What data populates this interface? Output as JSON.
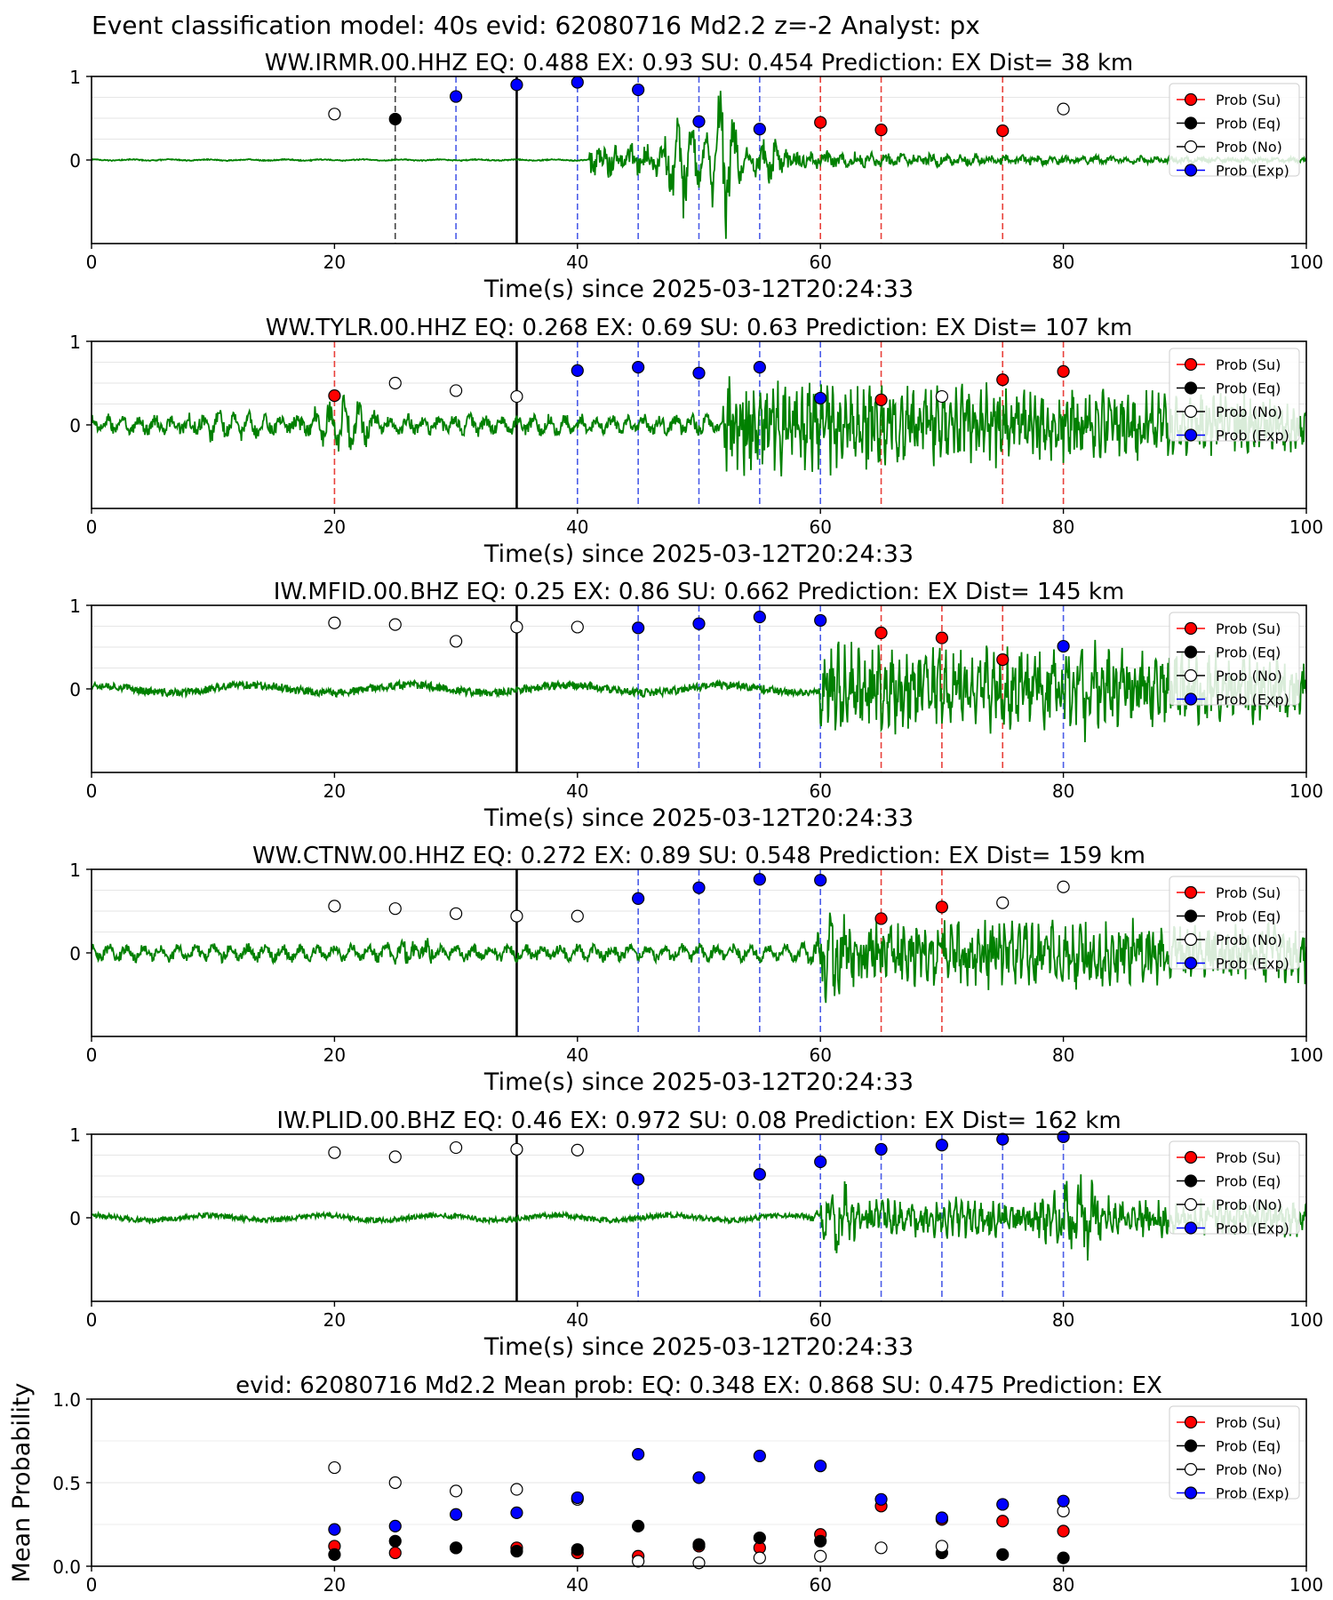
{
  "figure": {
    "title": "Event classification model: 40s evid: 62080716 Md2.2 z=-2 Analyst: px"
  },
  "legend": {
    "entries": [
      {
        "label": "Prob (Su)",
        "color": "#ff0000",
        "filled": true
      },
      {
        "label": "Prob (Eq)",
        "color": "#000000",
        "filled": true
      },
      {
        "label": "Prob (No)",
        "color": "#ffffff",
        "filled": false
      },
      {
        "label": "Prob (Exp)",
        "color": "#0000ff",
        "filled": true
      }
    ]
  },
  "colors": {
    "su": "#ff0000",
    "eq": "#000000",
    "no": "#ffffff",
    "exp": "#0000ff",
    "waveform": "#008000",
    "origin_line": "#000000"
  },
  "chart_data": [
    {
      "type": "line",
      "title": "WW.IRMR.00.HHZ   EQ: 0.488  EX: 0.93  SU: 0.454   Prediction: EX    Dist= 38 km",
      "xlabel": "Time(s) since 2025-03-12T20:24:33",
      "ylabel": "",
      "xlim": [
        0,
        100
      ],
      "ylim": [
        -1,
        1
      ],
      "xticks": [
        "0",
        "20",
        "40",
        "60",
        "80",
        "100"
      ],
      "yticks": [
        "0",
        "1"
      ],
      "origin_time": 35,
      "waveform": {
        "onset": 41,
        "pre_amp": 0.01,
        "post_amp": 0.18,
        "decay": 0.035,
        "freq": 0.9,
        "seed": 11,
        "bursts": [
          {
            "t": 48.5,
            "amp": 0.5,
            "width": 1.5
          },
          {
            "t": 52,
            "amp": 0.8,
            "width": 1.2
          },
          {
            "t": 56,
            "amp": 0.3,
            "width": 1.5
          }
        ]
      },
      "predictions": [
        {
          "t": 20,
          "cls": "no",
          "p": 0.55
        },
        {
          "t": 25,
          "cls": "eq",
          "p": 0.49
        },
        {
          "t": 30,
          "cls": "exp",
          "p": 0.76
        },
        {
          "t": 35,
          "cls": "exp",
          "p": 0.9
        },
        {
          "t": 40,
          "cls": "exp",
          "p": 0.93
        },
        {
          "t": 45,
          "cls": "exp",
          "p": 0.84
        },
        {
          "t": 50,
          "cls": "exp",
          "p": 0.46
        },
        {
          "t": 55,
          "cls": "exp",
          "p": 0.37
        },
        {
          "t": 60,
          "cls": "su",
          "p": 0.45
        },
        {
          "t": 65,
          "cls": "su",
          "p": 0.36
        },
        {
          "t": 75,
          "cls": "su",
          "p": 0.35
        },
        {
          "t": 80,
          "cls": "no",
          "p": 0.61
        }
      ]
    },
    {
      "type": "line",
      "title": "WW.TYLR.00.HHZ   EQ: 0.268  EX: 0.69  SU: 0.63   Prediction: EX    Dist= 107 km",
      "xlabel": "Time(s) since 2025-03-12T20:24:33",
      "ylabel": "",
      "xlim": [
        0,
        100
      ],
      "ylim": [
        -1,
        1
      ],
      "xticks": [
        "0",
        "20",
        "40",
        "60",
        "80",
        "100"
      ],
      "yticks": [
        "0",
        "1"
      ],
      "origin_time": 35,
      "waveform": {
        "onset": 52,
        "pre_amp": 0.12,
        "post_amp": 0.5,
        "decay": 0.012,
        "freq": 2.2,
        "seed": 23,
        "bursts": [
          {
            "t": 20.5,
            "amp": 0.25,
            "width": 3
          },
          {
            "t": 10,
            "amp": 0.12,
            "width": 3
          }
        ]
      },
      "predictions": [
        {
          "t": 20,
          "cls": "su",
          "p": 0.35
        },
        {
          "t": 25,
          "cls": "no",
          "p": 0.5
        },
        {
          "t": 30,
          "cls": "no",
          "p": 0.41
        },
        {
          "t": 35,
          "cls": "no",
          "p": 0.34
        },
        {
          "t": 40,
          "cls": "exp",
          "p": 0.65
        },
        {
          "t": 45,
          "cls": "exp",
          "p": 0.69
        },
        {
          "t": 50,
          "cls": "exp",
          "p": 0.62
        },
        {
          "t": 55,
          "cls": "exp",
          "p": 0.69
        },
        {
          "t": 60,
          "cls": "exp",
          "p": 0.32
        },
        {
          "t": 65,
          "cls": "su",
          "p": 0.3
        },
        {
          "t": 70,
          "cls": "no",
          "p": 0.34
        },
        {
          "t": 75,
          "cls": "su",
          "p": 0.54
        },
        {
          "t": 80,
          "cls": "su",
          "p": 0.64
        }
      ]
    },
    {
      "type": "line",
      "title": "IW.MFID.00.BHZ   EQ: 0.25  EX: 0.86  SU: 0.662   Prediction: EX    Dist= 145 km",
      "xlabel": "Time(s) since 2025-03-12T20:24:33",
      "ylabel": "",
      "xlim": [
        0,
        100
      ],
      "ylim": [
        -1,
        1
      ],
      "xticks": [
        "0",
        "20",
        "40",
        "60",
        "80",
        "100"
      ],
      "yticks": [
        "0",
        "1"
      ],
      "origin_time": 35,
      "waveform": {
        "onset": 60,
        "pre_amp": 0.08,
        "post_amp": 0.45,
        "decay": 0.008,
        "freq": 0.22,
        "seed": 37,
        "post_freq": 2.0,
        "bursts": [
          {
            "t": 80.5,
            "amp": 0.35,
            "width": 3
          }
        ]
      },
      "predictions": [
        {
          "t": 20,
          "cls": "no",
          "p": 0.79
        },
        {
          "t": 25,
          "cls": "no",
          "p": 0.77
        },
        {
          "t": 30,
          "cls": "no",
          "p": 0.57
        },
        {
          "t": 35,
          "cls": "no",
          "p": 0.74
        },
        {
          "t": 40,
          "cls": "no",
          "p": 0.74
        },
        {
          "t": 45,
          "cls": "exp",
          "p": 0.73
        },
        {
          "t": 50,
          "cls": "exp",
          "p": 0.78
        },
        {
          "t": 55,
          "cls": "exp",
          "p": 0.86
        },
        {
          "t": 60,
          "cls": "exp",
          "p": 0.82
        },
        {
          "t": 65,
          "cls": "su",
          "p": 0.67
        },
        {
          "t": 70,
          "cls": "su",
          "p": 0.61
        },
        {
          "t": 75,
          "cls": "su",
          "p": 0.35
        },
        {
          "t": 80,
          "cls": "exp",
          "p": 0.51
        }
      ]
    },
    {
      "type": "line",
      "title": "WW.CTNW.00.HHZ   EQ: 0.272  EX: 0.89  SU: 0.548   Prediction: EX    Dist= 159 km",
      "xlabel": "Time(s) since 2025-03-12T20:24:33",
      "ylabel": "",
      "xlim": [
        0,
        100
      ],
      "ylim": [
        -1,
        1
      ],
      "xticks": [
        "0",
        "20",
        "40",
        "60",
        "80",
        "100"
      ],
      "yticks": [
        "0",
        "1"
      ],
      "origin_time": 35,
      "waveform": {
        "onset": 60,
        "pre_amp": 0.1,
        "post_amp": 0.35,
        "decay": 0.005,
        "freq": 2.0,
        "seed": 51,
        "bursts": [
          {
            "t": 27,
            "amp": 0.15,
            "width": 2
          },
          {
            "t": 61,
            "amp": 0.4,
            "width": 1.5
          },
          {
            "t": 85,
            "amp": 0.15,
            "width": 4
          }
        ]
      },
      "predictions": [
        {
          "t": 20,
          "cls": "no",
          "p": 0.56
        },
        {
          "t": 25,
          "cls": "no",
          "p": 0.53
        },
        {
          "t": 30,
          "cls": "no",
          "p": 0.47
        },
        {
          "t": 35,
          "cls": "no",
          "p": 0.44
        },
        {
          "t": 40,
          "cls": "no",
          "p": 0.44
        },
        {
          "t": 45,
          "cls": "exp",
          "p": 0.65
        },
        {
          "t": 50,
          "cls": "exp",
          "p": 0.78
        },
        {
          "t": 55,
          "cls": "exp",
          "p": 0.88
        },
        {
          "t": 60,
          "cls": "exp",
          "p": 0.87
        },
        {
          "t": 65,
          "cls": "su",
          "p": 0.41
        },
        {
          "t": 70,
          "cls": "su",
          "p": 0.55
        },
        {
          "t": 75,
          "cls": "no",
          "p": 0.6
        },
        {
          "t": 80,
          "cls": "no",
          "p": 0.79
        }
      ]
    },
    {
      "type": "line",
      "title": "IW.PLID.00.BHZ   EQ: 0.46  EX: 0.972  SU: 0.08   Prediction: EX    Dist= 162 km",
      "xlabel": "Time(s) since 2025-03-12T20:24:33",
      "ylabel": "",
      "xlim": [
        0,
        100
      ],
      "ylim": [
        -1,
        1
      ],
      "xticks": [
        "0",
        "20",
        "40",
        "60",
        "80",
        "100"
      ],
      "yticks": [
        "0",
        "1"
      ],
      "origin_time": 35,
      "waveform": {
        "onset": 60,
        "pre_amp": 0.05,
        "post_amp": 0.2,
        "decay": 0.004,
        "freq": 0.3,
        "seed": 67,
        "post_freq": 2.2,
        "bursts": [
          {
            "t": 61.5,
            "amp": 0.3,
            "width": 1.5
          },
          {
            "t": 81,
            "amp": 0.55,
            "width": 1.8
          }
        ]
      },
      "predictions": [
        {
          "t": 20,
          "cls": "no",
          "p": 0.78
        },
        {
          "t": 25,
          "cls": "no",
          "p": 0.73
        },
        {
          "t": 30,
          "cls": "no",
          "p": 0.84
        },
        {
          "t": 35,
          "cls": "no",
          "p": 0.82
        },
        {
          "t": 40,
          "cls": "no",
          "p": 0.81
        },
        {
          "t": 45,
          "cls": "exp",
          "p": 0.46
        },
        {
          "t": 55,
          "cls": "exp",
          "p": 0.52
        },
        {
          "t": 60,
          "cls": "exp",
          "p": 0.67
        },
        {
          "t": 65,
          "cls": "exp",
          "p": 0.82
        },
        {
          "t": 70,
          "cls": "exp",
          "p": 0.87
        },
        {
          "t": 75,
          "cls": "exp",
          "p": 0.94
        },
        {
          "t": 80,
          "cls": "exp",
          "p": 0.97
        }
      ]
    },
    {
      "type": "scatter",
      "title": "evid: 62080716  Md2.2   Mean prob:   EQ: 0.348  EX: 0.868  SU: 0.475   Prediction: EX",
      "xlabel": "",
      "ylabel": "Mean Probability",
      "xlim": [
        0,
        100
      ],
      "ylim": [
        0,
        1
      ],
      "xticks": [
        "0",
        "20",
        "40",
        "60",
        "80",
        "100"
      ],
      "yticks": [
        "0.0",
        "0.5",
        "1.0"
      ],
      "x": [
        20,
        25,
        30,
        35,
        40,
        45,
        50,
        55,
        60,
        65,
        70,
        75,
        80
      ],
      "series": [
        {
          "key": "su",
          "values": [
            0.12,
            0.08,
            0.11,
            0.11,
            0.08,
            0.06,
            0.12,
            0.11,
            0.19,
            0.36,
            0.28,
            0.27,
            0.21
          ]
        },
        {
          "key": "eq",
          "values": [
            0.07,
            0.15,
            0.11,
            0.09,
            0.1,
            0.24,
            0.13,
            0.17,
            0.15,
            null,
            0.08,
            0.07,
            0.05
          ]
        },
        {
          "key": "no",
          "values": [
            0.59,
            0.5,
            0.45,
            0.46,
            0.4,
            0.03,
            0.02,
            0.05,
            0.06,
            0.11,
            0.12,
            null,
            0.33
          ]
        },
        {
          "key": "exp",
          "values": [
            0.22,
            0.24,
            0.31,
            0.32,
            0.41,
            0.67,
            0.53,
            0.66,
            0.6,
            0.4,
            0.29,
            0.37,
            0.39
          ]
        }
      ]
    }
  ]
}
